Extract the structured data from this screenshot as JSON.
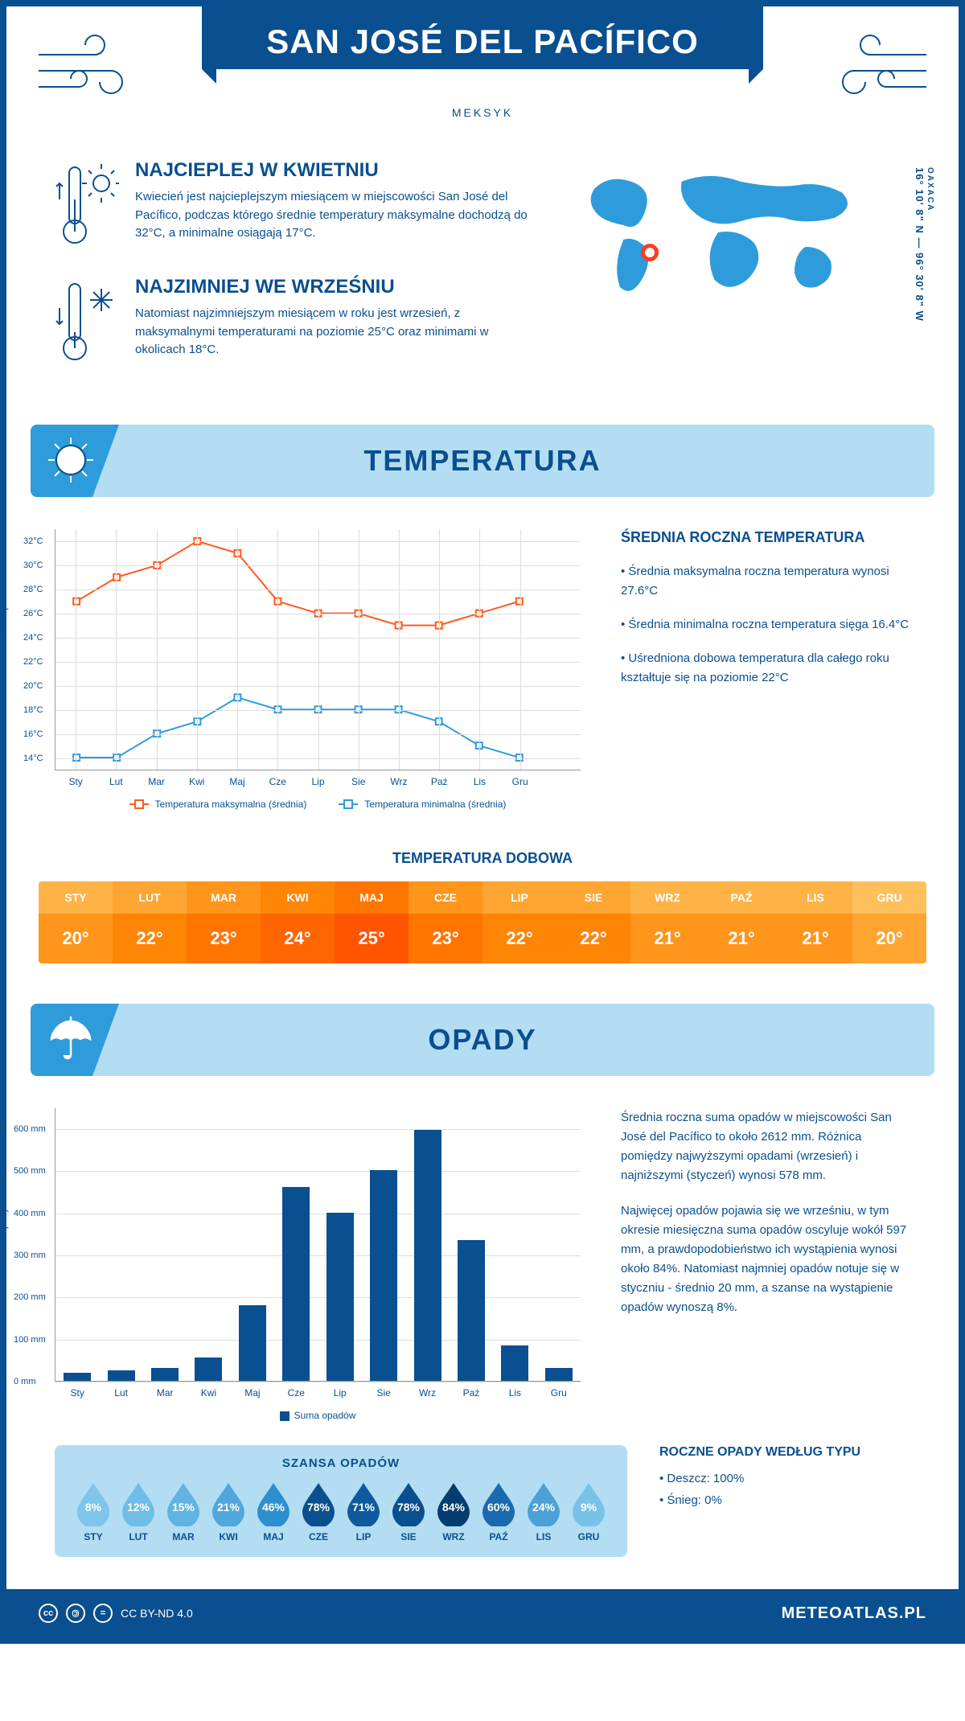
{
  "header": {
    "title": "SAN JOSÉ DEL PACÍFICO",
    "subtitle": "MEKSYK"
  },
  "location": {
    "region": "OAXACA",
    "coords": "16° 10' 8\" N — 96° 30' 8\" W"
  },
  "intro": {
    "hot": {
      "title": "NAJCIEPLEJ W KWIETNIU",
      "text": "Kwiecień jest najcieplejszym miesiącem w miejscowości San José del Pacífico, podczas którego średnie temperatury maksymalne dochodzą do 32°C, a minimalne osiągają 17°C."
    },
    "cold": {
      "title": "NAJZIMNIEJ WE WRZEŚNIU",
      "text": "Natomiast najzimniejszym miesiącem w roku jest wrzesień, z maksymalnymi temperaturami na poziomie 25°C oraz minimami w okolicach 18°C."
    }
  },
  "sections": {
    "temp_title": "TEMPERATURA",
    "precip_title": "OPADY"
  },
  "temp_chart": {
    "type": "line",
    "months": [
      "Sty",
      "Lut",
      "Mar",
      "Kwi",
      "Maj",
      "Cze",
      "Lip",
      "Sie",
      "Wrz",
      "Paź",
      "Lis",
      "Gru"
    ],
    "series_max": {
      "label": "Temperatura maksymalna (średnia)",
      "color": "#ff5a1f",
      "values": [
        27,
        29,
        30,
        32,
        31,
        27,
        26,
        26,
        25,
        25,
        26,
        27
      ]
    },
    "series_min": {
      "label": "Temperatura minimalna (średnia)",
      "color": "#2e9bdb",
      "values": [
        14,
        14,
        16,
        17,
        19,
        18,
        18,
        18,
        18,
        17,
        15,
        14
      ]
    },
    "ylabel": "Temperatura",
    "ylim": [
      13,
      33
    ],
    "yticks": [
      14,
      16,
      18,
      20,
      22,
      24,
      26,
      28,
      30,
      32
    ],
    "ytick_labels": [
      "14°C",
      "16°C",
      "18°C",
      "20°C",
      "22°C",
      "24°C",
      "26°C",
      "28°C",
      "30°C",
      "32°C"
    ],
    "grid_color": "#dddddd",
    "marker": "square",
    "line_width": 2
  },
  "temp_info": {
    "heading": "ŚREDNIA ROCZNA TEMPERATURA",
    "b1": "• Średnia maksymalna roczna temperatura wynosi 27.6°C",
    "b2": "• Średnia minimalna roczna temperatura sięga 16.4°C",
    "b3": "• Uśredniona dobowa temperatura dla całego roku kształtuje się na poziomie 22°C"
  },
  "daily_temp": {
    "title": "TEMPERATURA DOBOWA",
    "months": [
      "STY",
      "LUT",
      "MAR",
      "KWI",
      "MAJ",
      "CZE",
      "LIP",
      "SIE",
      "WRZ",
      "PAŹ",
      "LIS",
      "GRU"
    ],
    "values": [
      "20°",
      "22°",
      "23°",
      "24°",
      "25°",
      "23°",
      "22°",
      "22°",
      "21°",
      "21°",
      "21°",
      "20°"
    ],
    "header_colors": [
      "#ffb347",
      "#ffa531",
      "#ff951b",
      "#ff8505",
      "#ff7500",
      "#ff951b",
      "#ffa531",
      "#ffa531",
      "#ffb347",
      "#ffb347",
      "#ffb347",
      "#ffc05c"
    ],
    "value_colors": [
      "#ff951b",
      "#ff8505",
      "#ff7500",
      "#ff6500",
      "#ff5500",
      "#ff7500",
      "#ff8505",
      "#ff8505",
      "#ff951b",
      "#ff951b",
      "#ff951b",
      "#ffa531"
    ]
  },
  "precip_chart": {
    "type": "bar",
    "months": [
      "Sty",
      "Lut",
      "Mar",
      "Kwi",
      "Maj",
      "Cze",
      "Lip",
      "Sie",
      "Wrz",
      "Paź",
      "Lis",
      "Gru"
    ],
    "values": [
      20,
      25,
      30,
      55,
      180,
      460,
      400,
      500,
      597,
      335,
      85,
      30
    ],
    "bar_color": "#0a4f8f",
    "ylabel": "Opady",
    "ylim": [
      0,
      650
    ],
    "yticks": [
      0,
      100,
      200,
      300,
      400,
      500,
      600
    ],
    "ytick_labels": [
      "0 mm",
      "100 mm",
      "200 mm",
      "300 mm",
      "400 mm",
      "500 mm",
      "600 mm"
    ],
    "legend": "Suma opadów",
    "grid_color": "#dddddd"
  },
  "precip_info": {
    "p1": "Średnia roczna suma opadów w miejscowości San José del Pacífico to około 2612 mm. Różnica pomiędzy najwyższymi opadami (wrzesień) i najniższymi (styczeń) wynosi 578 mm.",
    "p2": "Najwięcej opadów pojawia się we wrześniu, w tym okresie miesięczna suma opadów oscyluje wokół 597 mm, a prawdopodobieństwo ich wystąpienia wynosi około 84%. Natomiast najmniej opadów notuje się w styczniu - średnio 20 mm, a szanse na wystąpienie opadów wynoszą 8%."
  },
  "chance": {
    "title": "SZANSA OPADÓW",
    "months": [
      "STY",
      "LUT",
      "MAR",
      "KWI",
      "MAJ",
      "CZE",
      "LIP",
      "SIE",
      "WRZ",
      "PAŹ",
      "LIS",
      "GRU"
    ],
    "pct": [
      "8%",
      "12%",
      "15%",
      "21%",
      "46%",
      "78%",
      "71%",
      "78%",
      "84%",
      "60%",
      "24%",
      "9%"
    ],
    "colors": [
      "#7ec5ea",
      "#6fbce6",
      "#61b3e2",
      "#4fa7dc",
      "#2e8fce",
      "#0a4f8f",
      "#0f5a9c",
      "#0a4f8f",
      "#063d70",
      "#1a6aaf",
      "#4aa2d9",
      "#78c2e8"
    ]
  },
  "precip_type": {
    "heading": "ROCZNE OPADY WEDŁUG TYPU",
    "rain": "• Deszcz: 100%",
    "snow": "• Śnieg: 0%"
  },
  "footer": {
    "license": "CC BY-ND 4.0",
    "site": "METEOATLAS.PL"
  }
}
